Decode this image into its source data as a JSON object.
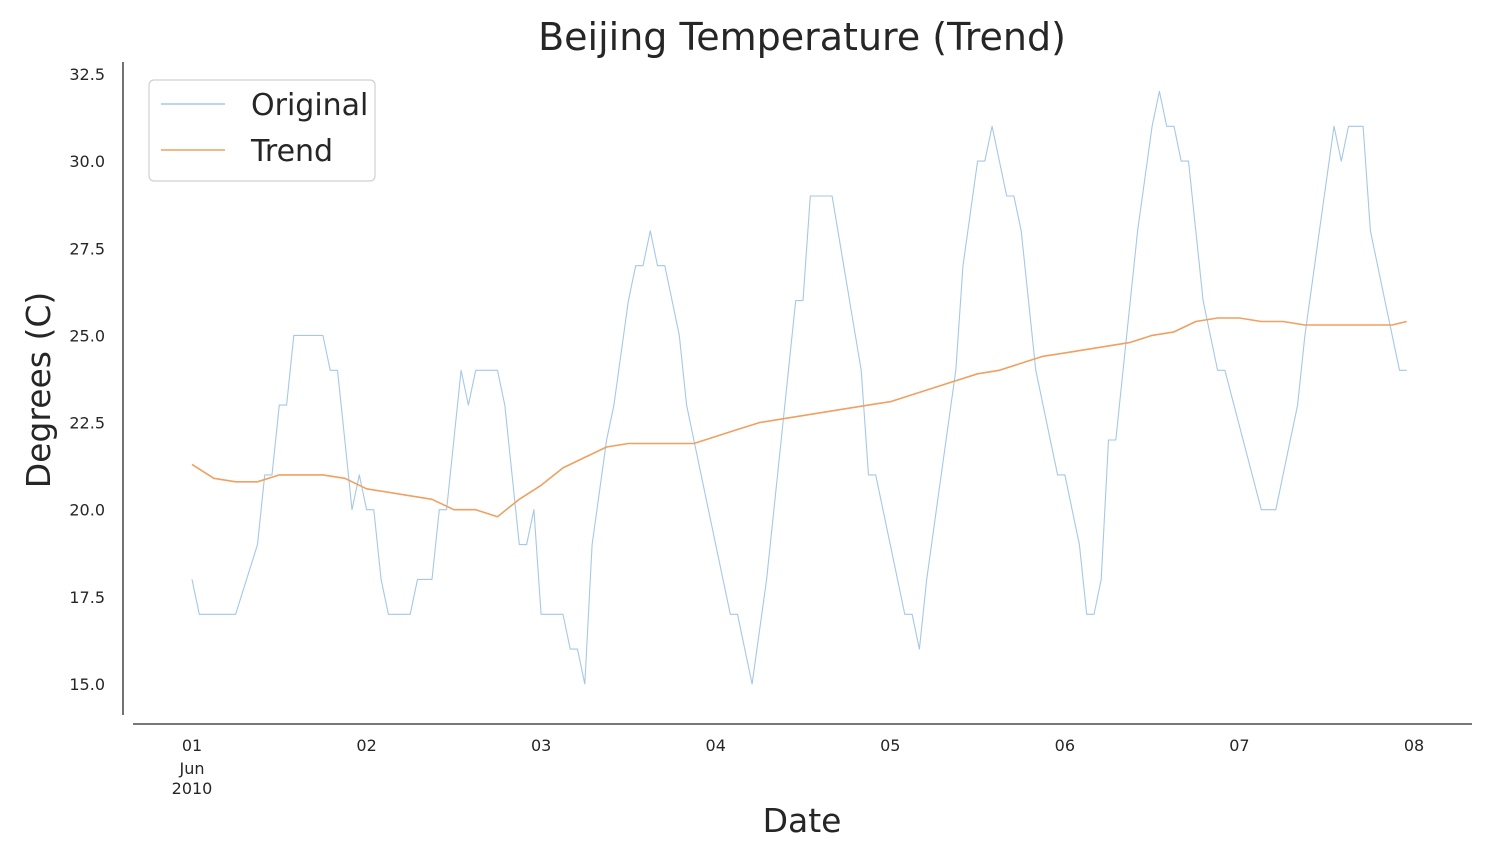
{
  "chart_data": {
    "type": "line",
    "title": "Beijing Temperature (Trend)",
    "xlabel": "Date",
    "ylabel": "Degrees (C)",
    "xlim": [
      "2010-06-01 00:00",
      "2010-06-08 00:00"
    ],
    "ylim": [
      15.0,
      32.5
    ],
    "grid": false,
    "legend_position": "top-left",
    "x_ticks": [
      {
        "date": "2010-06-01",
        "label": "01",
        "sublabel": "Jun",
        "sublabel2": "2010"
      },
      {
        "date": "2010-06-02",
        "label": "02"
      },
      {
        "date": "2010-06-03",
        "label": "03"
      },
      {
        "date": "2010-06-04",
        "label": "04"
      },
      {
        "date": "2010-06-05",
        "label": "05"
      },
      {
        "date": "2010-06-06",
        "label": "06"
      },
      {
        "date": "2010-06-07",
        "label": "07"
      },
      {
        "date": "2010-06-08",
        "label": "08"
      }
    ],
    "y_ticks": [
      "15.0",
      "17.5",
      "20.0",
      "22.5",
      "25.0",
      "27.5",
      "30.0",
      "32.5"
    ],
    "series": [
      {
        "name": "Original",
        "color": "#a6c8e6",
        "points": [
          [
            "2010-06-01 00:00",
            18
          ],
          [
            "2010-06-01 01:00",
            17
          ],
          [
            "2010-06-01 03:00",
            17
          ],
          [
            "2010-06-01 06:00",
            17
          ],
          [
            "2010-06-01 09:00",
            19
          ],
          [
            "2010-06-01 10:00",
            21
          ],
          [
            "2010-06-01 11:00",
            21
          ],
          [
            "2010-06-01 12:00",
            23
          ],
          [
            "2010-06-01 13:00",
            23
          ],
          [
            "2010-06-01 14:00",
            25
          ],
          [
            "2010-06-01 16:00",
            25
          ],
          [
            "2010-06-01 18:00",
            25
          ],
          [
            "2010-06-01 19:00",
            24
          ],
          [
            "2010-06-01 20:00",
            24
          ],
          [
            "2010-06-01 21:00",
            22
          ],
          [
            "2010-06-01 22:00",
            20
          ],
          [
            "2010-06-01 23:00",
            21
          ],
          [
            "2010-06-02 00:00",
            20
          ],
          [
            "2010-06-02 01:00",
            20
          ],
          [
            "2010-06-02 02:00",
            18
          ],
          [
            "2010-06-02 03:00",
            17
          ],
          [
            "2010-06-02 06:00",
            17
          ],
          [
            "2010-06-02 07:00",
            18
          ],
          [
            "2010-06-02 09:00",
            18
          ],
          [
            "2010-06-02 10:00",
            20
          ],
          [
            "2010-06-02 11:00",
            20
          ],
          [
            "2010-06-02 13:00",
            24
          ],
          [
            "2010-06-02 14:00",
            23
          ],
          [
            "2010-06-02 15:00",
            24
          ],
          [
            "2010-06-02 17:00",
            24
          ],
          [
            "2010-06-02 18:00",
            24
          ],
          [
            "2010-06-02 19:00",
            23
          ],
          [
            "2010-06-02 21:00",
            19
          ],
          [
            "2010-06-02 22:00",
            19
          ],
          [
            "2010-06-02 23:00",
            20
          ],
          [
            "2010-06-03 00:00",
            17
          ],
          [
            "2010-06-03 03:00",
            17
          ],
          [
            "2010-06-03 04:00",
            16
          ],
          [
            "2010-06-03 05:00",
            16
          ],
          [
            "2010-06-03 06:00",
            15
          ],
          [
            "2010-06-03 07:00",
            19
          ],
          [
            "2010-06-03 09:00",
            22
          ],
          [
            "2010-06-03 10:00",
            23
          ],
          [
            "2010-06-03 12:00",
            26
          ],
          [
            "2010-06-03 13:00",
            27
          ],
          [
            "2010-06-03 14:00",
            27
          ],
          [
            "2010-06-03 15:00",
            28
          ],
          [
            "2010-06-03 16:00",
            27
          ],
          [
            "2010-06-03 17:00",
            27
          ],
          [
            "2010-06-03 19:00",
            25
          ],
          [
            "2010-06-03 20:00",
            23
          ],
          [
            "2010-06-03 23:00",
            20
          ],
          [
            "2010-06-04 02:00",
            17
          ],
          [
            "2010-06-04 03:00",
            17
          ],
          [
            "2010-06-04 05:00",
            15
          ],
          [
            "2010-06-04 07:00",
            18
          ],
          [
            "2010-06-04 09:00",
            22
          ],
          [
            "2010-06-04 11:00",
            26
          ],
          [
            "2010-06-04 12:00",
            26
          ],
          [
            "2010-06-04 13:00",
            29
          ],
          [
            "2010-06-04 16:00",
            29
          ],
          [
            "2010-06-04 20:00",
            24
          ],
          [
            "2010-06-04 21:00",
            21
          ],
          [
            "2010-06-04 22:00",
            21
          ],
          [
            "2010-06-05 02:00",
            17
          ],
          [
            "2010-06-05 03:00",
            17
          ],
          [
            "2010-06-05 04:00",
            16
          ],
          [
            "2010-06-05 05:00",
            18
          ],
          [
            "2010-06-05 07:00",
            21
          ],
          [
            "2010-06-05 09:00",
            24
          ],
          [
            "2010-06-05 10:00",
            27
          ],
          [
            "2010-06-05 12:00",
            30
          ],
          [
            "2010-06-05 13:00",
            30
          ],
          [
            "2010-06-05 14:00",
            31
          ],
          [
            "2010-06-05 16:00",
            29
          ],
          [
            "2010-06-05 17:00",
            29
          ],
          [
            "2010-06-05 18:00",
            28
          ],
          [
            "2010-06-05 20:00",
            24
          ],
          [
            "2010-06-05 22:00",
            22
          ],
          [
            "2010-06-05 23:00",
            21
          ],
          [
            "2010-06-06 00:00",
            21
          ],
          [
            "2010-06-06 01:00",
            20
          ],
          [
            "2010-06-06 02:00",
            19
          ],
          [
            "2010-06-06 03:00",
            17
          ],
          [
            "2010-06-06 04:00",
            17
          ],
          [
            "2010-06-06 05:00",
            18
          ],
          [
            "2010-06-06 06:00",
            22
          ],
          [
            "2010-06-06 07:00",
            22
          ],
          [
            "2010-06-06 09:00",
            26
          ],
          [
            "2010-06-06 10:00",
            28
          ],
          [
            "2010-06-06 12:00",
            31
          ],
          [
            "2010-06-06 13:00",
            32
          ],
          [
            "2010-06-06 14:00",
            31
          ],
          [
            "2010-06-06 15:00",
            31
          ],
          [
            "2010-06-06 16:00",
            30
          ],
          [
            "2010-06-06 17:00",
            30
          ],
          [
            "2010-06-06 19:00",
            26
          ],
          [
            "2010-06-06 21:00",
            24
          ],
          [
            "2010-06-06 22:00",
            24
          ],
          [
            "2010-06-07 03:00",
            20
          ],
          [
            "2010-06-07 05:00",
            20
          ],
          [
            "2010-06-07 07:00",
            22
          ],
          [
            "2010-06-07 08:00",
            23
          ],
          [
            "2010-06-07 09:00",
            25
          ],
          [
            "2010-06-07 11:00",
            28
          ],
          [
            "2010-06-07 13:00",
            31
          ],
          [
            "2010-06-07 14:00",
            30
          ],
          [
            "2010-06-07 15:00",
            31
          ],
          [
            "2010-06-07 17:00",
            31
          ],
          [
            "2010-06-07 18:00",
            28
          ],
          [
            "2010-06-07 20:00",
            26
          ],
          [
            "2010-06-07 22:00",
            24
          ],
          [
            "2010-06-07 23:00",
            24
          ]
        ]
      },
      {
        "name": "Trend",
        "color": "#f0a060",
        "points": [
          [
            "2010-06-01 00:00",
            21.3
          ],
          [
            "2010-06-01 03:00",
            20.9
          ],
          [
            "2010-06-01 06:00",
            20.8
          ],
          [
            "2010-06-01 09:00",
            20.8
          ],
          [
            "2010-06-01 12:00",
            21.0
          ],
          [
            "2010-06-01 15:00",
            21.0
          ],
          [
            "2010-06-01 18:00",
            21.0
          ],
          [
            "2010-06-01 21:00",
            20.9
          ],
          [
            "2010-06-02 00:00",
            20.6
          ],
          [
            "2010-06-02 06:00",
            20.4
          ],
          [
            "2010-06-02 09:00",
            20.3
          ],
          [
            "2010-06-02 12:00",
            20.0
          ],
          [
            "2010-06-02 15:00",
            20.0
          ],
          [
            "2010-06-02 18:00",
            19.8
          ],
          [
            "2010-06-02 21:00",
            20.3
          ],
          [
            "2010-06-03 00:00",
            20.7
          ],
          [
            "2010-06-03 03:00",
            21.2
          ],
          [
            "2010-06-03 06:00",
            21.5
          ],
          [
            "2010-06-03 09:00",
            21.8
          ],
          [
            "2010-06-03 12:00",
            21.9
          ],
          [
            "2010-06-03 15:00",
            21.9
          ],
          [
            "2010-06-03 18:00",
            21.9
          ],
          [
            "2010-06-03 21:00",
            21.9
          ],
          [
            "2010-06-04 00:00",
            22.1
          ],
          [
            "2010-06-04 03:00",
            22.3
          ],
          [
            "2010-06-04 06:00",
            22.5
          ],
          [
            "2010-06-04 09:00",
            22.6
          ],
          [
            "2010-06-04 12:00",
            22.7
          ],
          [
            "2010-06-04 15:00",
            22.8
          ],
          [
            "2010-06-04 18:00",
            22.9
          ],
          [
            "2010-06-04 21:00",
            23.0
          ],
          [
            "2010-06-05 00:00",
            23.1
          ],
          [
            "2010-06-05 03:00",
            23.3
          ],
          [
            "2010-06-05 06:00",
            23.5
          ],
          [
            "2010-06-05 09:00",
            23.7
          ],
          [
            "2010-06-05 12:00",
            23.9
          ],
          [
            "2010-06-05 15:00",
            24.0
          ],
          [
            "2010-06-05 18:00",
            24.2
          ],
          [
            "2010-06-05 21:00",
            24.4
          ],
          [
            "2010-06-06 00:00",
            24.5
          ],
          [
            "2010-06-06 03:00",
            24.6
          ],
          [
            "2010-06-06 06:00",
            24.7
          ],
          [
            "2010-06-06 09:00",
            24.8
          ],
          [
            "2010-06-06 12:00",
            25.0
          ],
          [
            "2010-06-06 15:00",
            25.1
          ],
          [
            "2010-06-06 18:00",
            25.4
          ],
          [
            "2010-06-06 21:00",
            25.5
          ],
          [
            "2010-06-07 00:00",
            25.5
          ],
          [
            "2010-06-07 03:00",
            25.4
          ],
          [
            "2010-06-07 06:00",
            25.4
          ],
          [
            "2010-06-07 09:00",
            25.3
          ],
          [
            "2010-06-07 12:00",
            25.3
          ],
          [
            "2010-06-07 15:00",
            25.3
          ],
          [
            "2010-06-07 18:00",
            25.3
          ],
          [
            "2010-06-07 21:00",
            25.3
          ],
          [
            "2010-06-07 23:00",
            25.4
          ]
        ]
      }
    ]
  }
}
